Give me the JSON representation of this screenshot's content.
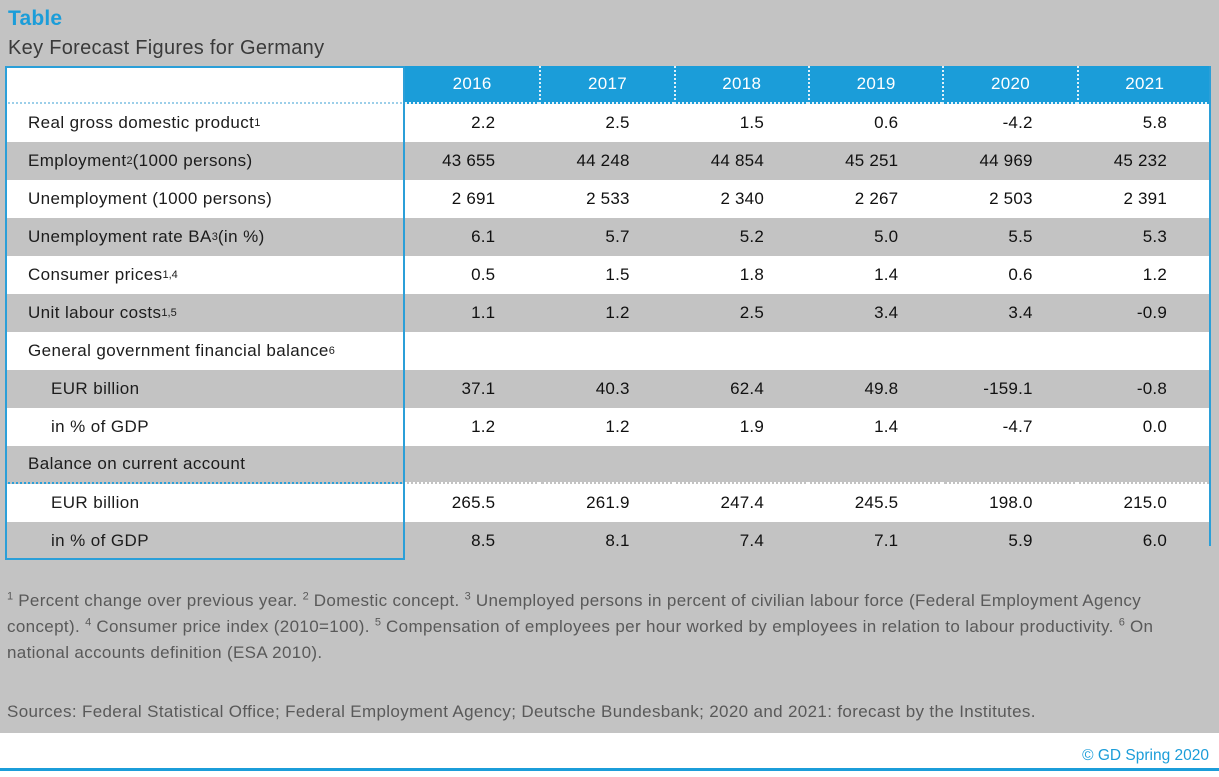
{
  "page": {
    "title": "Table",
    "subtitle": "Key Forecast Figures for Germany",
    "sources": "Sources: Federal Statistical Office; Federal Employment Agency; Deutsche Bundesbank; 2020 and 2021: forecast by the Institutes.",
    "copyright": "© GD Spring 2020"
  },
  "colors": {
    "accent_blue": "#1B9DD9",
    "border_blue": "#2B9FD8",
    "page_gray": "#C3C3C3",
    "row_gray": "#C3C3C3",
    "note_gray": "#595959",
    "header_text": "#FFFFFF"
  },
  "chart_data": {
    "type": "table",
    "title": "Key Forecast Figures for Germany",
    "columns": [
      "",
      "2016",
      "2017",
      "2018",
      "2019",
      "2020",
      "2021"
    ],
    "rows": [
      {
        "label": "Real gross domestic product",
        "sup": "1",
        "label_suffix": "",
        "indent": false,
        "dotted_bottom": false,
        "values": [
          "2.2",
          "2.5",
          "1.5",
          "0.6",
          "-4.2",
          "5.8"
        ]
      },
      {
        "label": "Employment",
        "sup": "2",
        "label_suffix": " (1000 persons)",
        "indent": false,
        "dotted_bottom": false,
        "values": [
          "43 655",
          "44 248",
          "44 854",
          "45 251",
          "44 969",
          "45 232"
        ]
      },
      {
        "label": "Unemployment (1000 persons)",
        "sup": "",
        "label_suffix": "",
        "indent": false,
        "dotted_bottom": false,
        "values": [
          "2 691",
          "2 533",
          "2 340",
          "2 267",
          "2 503",
          "2 391"
        ]
      },
      {
        "label": "Unemployment rate BA",
        "sup": "3",
        "label_suffix": " (in %)",
        "indent": false,
        "dotted_bottom": false,
        "values": [
          "6.1",
          "5.7",
          "5.2",
          "5.0",
          "5.5",
          "5.3"
        ]
      },
      {
        "label": "Consumer prices",
        "sup": "1,4",
        "label_suffix": "",
        "indent": false,
        "dotted_bottom": false,
        "values": [
          "0.5",
          "1.5",
          "1.8",
          "1.4",
          "0.6",
          "1.2"
        ]
      },
      {
        "label": "Unit labour costs",
        "sup": "1,5",
        "label_suffix": "",
        "indent": false,
        "dotted_bottom": false,
        "values": [
          "1.1",
          "1.2",
          "2.5",
          "3.4",
          "3.4",
          "-0.9"
        ]
      },
      {
        "label": "General government financial balance",
        "sup": "6",
        "label_suffix": "",
        "indent": false,
        "dotted_bottom": false,
        "values": [
          "",
          "",
          "",
          "",
          "",
          ""
        ]
      },
      {
        "label": "EUR billion",
        "sup": "",
        "label_suffix": "",
        "indent": true,
        "dotted_bottom": false,
        "values": [
          "37.1",
          "40.3",
          "62.4",
          "49.8",
          "-159.1",
          "-0.8"
        ]
      },
      {
        "label": "in % of GDP",
        "sup": "",
        "label_suffix": "",
        "indent": true,
        "dotted_bottom": false,
        "values": [
          "1.2",
          "1.2",
          "1.9",
          "1.4",
          "-4.7",
          "0.0"
        ]
      },
      {
        "label": "Balance on current account",
        "sup": "",
        "label_suffix": "",
        "indent": false,
        "dotted_bottom": true,
        "values": [
          "",
          "",
          "",
          "",
          "",
          ""
        ]
      },
      {
        "label": "EUR billion",
        "sup": "",
        "label_suffix": "",
        "indent": true,
        "dotted_bottom": false,
        "values": [
          "265.5",
          "261.9",
          "247.4",
          "245.5",
          "198.0",
          "215.0"
        ]
      },
      {
        "label": "in % of GDP",
        "sup": "",
        "label_suffix": "",
        "indent": true,
        "dotted_bottom": false,
        "values": [
          "8.5",
          "8.1",
          "7.4",
          "7.1",
          "5.9",
          "6.0"
        ]
      }
    ]
  },
  "footnotes": {
    "segments": [
      {
        "sup": "1",
        "text": " Percent change over previous year. "
      },
      {
        "sup": "2",
        "text": " Domestic concept. "
      },
      {
        "sup": "3",
        "text": " Unemployed persons in percent of civilian labour force (Federal Employment Agency concept). "
      },
      {
        "sup": "4",
        "text": " Consumer price index (2010=100). "
      },
      {
        "sup": "5",
        "text": " Compensation of employees per hour worked by employees in relation to labour productivity. "
      },
      {
        "sup": "6",
        "text": " On national accounts definition (ESA 2010)."
      }
    ]
  }
}
